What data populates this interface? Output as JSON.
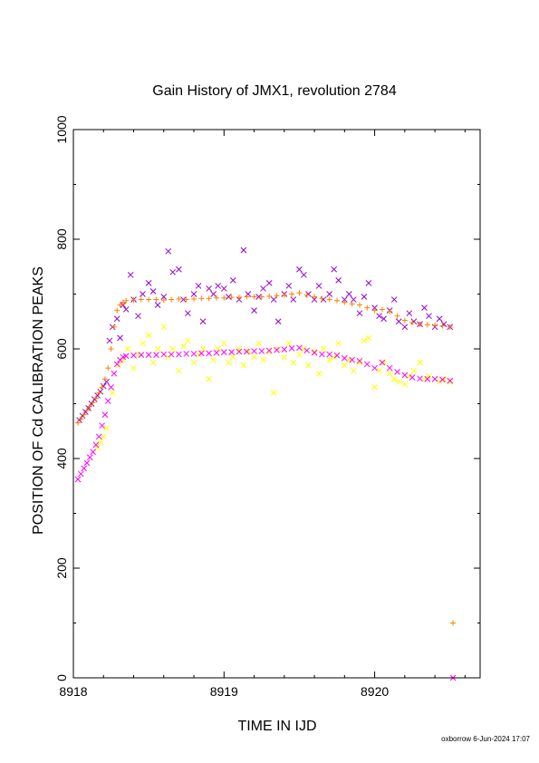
{
  "chart_data": {
    "type": "scatter",
    "title": "Gain History of JMX1, revolution 2784",
    "xlabel": "TIME IN IJD",
    "ylabel": "POSITION OF Cd CALIBRATION PEAKS",
    "xlim": [
      8918.0,
      8920.7
    ],
    "ylim": [
      0,
      1000
    ],
    "xticks": [
      8918,
      8919,
      8920
    ],
    "yticks": [
      0,
      200,
      400,
      600,
      800,
      1000
    ],
    "grid": false,
    "series": [
      {
        "color": "#9400d3",
        "marker": "x",
        "points": [
          [
            8918.04,
            470
          ],
          [
            8918.06,
            478
          ],
          [
            8918.08,
            485
          ],
          [
            8918.1,
            492
          ],
          [
            8918.12,
            500
          ],
          [
            8918.14,
            508
          ],
          [
            8918.16,
            515
          ],
          [
            8918.18,
            522
          ],
          [
            8918.2,
            532
          ],
          [
            8918.22,
            540
          ],
          [
            8918.24,
            615
          ],
          [
            8918.26,
            640
          ],
          [
            8918.29,
            655
          ],
          [
            8918.31,
            620
          ],
          [
            8918.33,
            680
          ],
          [
            8918.35,
            672
          ],
          [
            8918.38,
            735
          ],
          [
            8918.4,
            690
          ],
          [
            8918.43,
            660
          ],
          [
            8918.46,
            700
          ],
          [
            8918.5,
            720
          ],
          [
            8918.53,
            705
          ],
          [
            8918.56,
            680
          ],
          [
            8918.6,
            695
          ],
          [
            8918.63,
            778
          ],
          [
            8918.66,
            740
          ],
          [
            8918.7,
            745
          ],
          [
            8918.73,
            690
          ],
          [
            8918.76,
            665
          ],
          [
            8918.8,
            700
          ],
          [
            8918.83,
            715
          ],
          [
            8918.86,
            650
          ],
          [
            8918.9,
            710
          ],
          [
            8918.93,
            700
          ],
          [
            8918.96,
            715
          ],
          [
            8919.0,
            710
          ],
          [
            8919.03,
            695
          ],
          [
            8919.06,
            725
          ],
          [
            8919.1,
            690
          ],
          [
            8919.13,
            780
          ],
          [
            8919.16,
            700
          ],
          [
            8919.2,
            670
          ],
          [
            8919.23,
            695
          ],
          [
            8919.26,
            710
          ],
          [
            8919.3,
            720
          ],
          [
            8919.33,
            690
          ],
          [
            8919.36,
            650
          ],
          [
            8919.4,
            700
          ],
          [
            8919.43,
            715
          ],
          [
            8919.46,
            690
          ],
          [
            8919.5,
            745
          ],
          [
            8919.53,
            735
          ],
          [
            8919.56,
            700
          ],
          [
            8919.6,
            690
          ],
          [
            8919.63,
            715
          ],
          [
            8919.66,
            690
          ],
          [
            8919.7,
            700
          ],
          [
            8919.73,
            745
          ],
          [
            8919.76,
            725
          ],
          [
            8919.8,
            690
          ],
          [
            8919.83,
            700
          ],
          [
            8919.86,
            690
          ],
          [
            8919.9,
            665
          ],
          [
            8919.93,
            695
          ],
          [
            8919.96,
            720
          ],
          [
            8920.0,
            675
          ],
          [
            8920.03,
            660
          ],
          [
            8920.06,
            655
          ],
          [
            8920.1,
            670
          ],
          [
            8920.13,
            690
          ],
          [
            8920.16,
            650
          ],
          [
            8920.2,
            640
          ],
          [
            8920.23,
            665
          ],
          [
            8920.26,
            650
          ],
          [
            8920.3,
            645
          ],
          [
            8920.33,
            675
          ],
          [
            8920.36,
            660
          ],
          [
            8920.4,
            640
          ],
          [
            8920.43,
            655
          ],
          [
            8920.46,
            645
          ],
          [
            8920.5,
            640
          ]
        ]
      },
      {
        "color": "#ff8000",
        "marker": "+",
        "points": [
          [
            8918.03,
            465
          ],
          [
            8918.05,
            472
          ],
          [
            8918.07,
            480
          ],
          [
            8918.09,
            488
          ],
          [
            8918.11,
            495
          ],
          [
            8918.13,
            502
          ],
          [
            8918.15,
            510
          ],
          [
            8918.17,
            520
          ],
          [
            8918.19,
            530
          ],
          [
            8918.21,
            545
          ],
          [
            8918.23,
            565
          ],
          [
            8918.25,
            600
          ],
          [
            8918.27,
            640
          ],
          [
            8918.29,
            670
          ],
          [
            8918.31,
            680
          ],
          [
            8918.33,
            685
          ],
          [
            8918.35,
            688
          ],
          [
            8918.4,
            689
          ],
          [
            8918.45,
            690
          ],
          [
            8918.5,
            690
          ],
          [
            8918.55,
            690
          ],
          [
            8918.6,
            689
          ],
          [
            8918.65,
            690
          ],
          [
            8918.7,
            691
          ],
          [
            8918.75,
            690
          ],
          [
            8918.8,
            691
          ],
          [
            8918.85,
            692
          ],
          [
            8918.9,
            692
          ],
          [
            8918.95,
            693
          ],
          [
            8919.0,
            693
          ],
          [
            8919.05,
            694
          ],
          [
            8919.1,
            694
          ],
          [
            8919.15,
            695
          ],
          [
            8919.2,
            695
          ],
          [
            8919.25,
            695
          ],
          [
            8919.3,
            696
          ],
          [
            8919.35,
            697
          ],
          [
            8919.4,
            698
          ],
          [
            8919.45,
            700
          ],
          [
            8919.5,
            702
          ],
          [
            8919.55,
            698
          ],
          [
            8919.6,
            695
          ],
          [
            8919.65,
            692
          ],
          [
            8919.7,
            690
          ],
          [
            8919.75,
            688
          ],
          [
            8919.8,
            685
          ],
          [
            8919.85,
            682
          ],
          [
            8919.9,
            680
          ],
          [
            8919.95,
            675
          ],
          [
            8920.0,
            670
          ],
          [
            8920.05,
            672
          ],
          [
            8920.1,
            668
          ],
          [
            8920.15,
            660
          ],
          [
            8920.2,
            652
          ],
          [
            8920.25,
            648
          ],
          [
            8920.3,
            645
          ],
          [
            8920.35,
            644
          ],
          [
            8920.4,
            643
          ],
          [
            8920.45,
            642
          ],
          [
            8920.5,
            640
          ],
          [
            8920.52,
            100
          ]
        ]
      },
      {
        "color": "#ffff00",
        "marker": "x",
        "points": [
          [
            8918.16,
            420
          ],
          [
            8918.18,
            430
          ],
          [
            8918.2,
            440
          ],
          [
            8918.22,
            455
          ],
          [
            8918.26,
            520
          ],
          [
            8918.3,
            570
          ],
          [
            8918.33,
            580
          ],
          [
            8918.36,
            600
          ],
          [
            8918.4,
            565
          ],
          [
            8918.43,
            590
          ],
          [
            8918.46,
            610
          ],
          [
            8918.5,
            625
          ],
          [
            8918.53,
            575
          ],
          [
            8918.56,
            600
          ],
          [
            8918.6,
            640
          ],
          [
            8918.63,
            585
          ],
          [
            8918.66,
            600
          ],
          [
            8918.7,
            560
          ],
          [
            8918.73,
            605
          ],
          [
            8918.76,
            615
          ],
          [
            8918.8,
            575
          ],
          [
            8918.83,
            590
          ],
          [
            8918.86,
            600
          ],
          [
            8918.9,
            545
          ],
          [
            8918.93,
            580
          ],
          [
            8918.96,
            600
          ],
          [
            8919.0,
            610
          ],
          [
            8919.03,
            575
          ],
          [
            8919.06,
            585
          ],
          [
            8919.1,
            600
          ],
          [
            8919.13,
            570
          ],
          [
            8919.16,
            595
          ],
          [
            8919.2,
            585
          ],
          [
            8919.23,
            610
          ],
          [
            8919.26,
            580
          ],
          [
            8919.3,
            595
          ],
          [
            8919.33,
            520
          ],
          [
            8919.36,
            600
          ],
          [
            8919.4,
            585
          ],
          [
            8919.43,
            610
          ],
          [
            8919.46,
            575
          ],
          [
            8919.5,
            590
          ],
          [
            8919.53,
            600
          ],
          [
            8919.56,
            570
          ],
          [
            8919.6,
            595
          ],
          [
            8919.63,
            555
          ],
          [
            8919.66,
            600
          ],
          [
            8919.7,
            580
          ],
          [
            8919.73,
            585
          ],
          [
            8919.76,
            610
          ],
          [
            8919.8,
            570
          ],
          [
            8919.83,
            580
          ],
          [
            8919.86,
            560
          ],
          [
            8919.9,
            575
          ],
          [
            8919.93,
            615
          ],
          [
            8919.96,
            620
          ],
          [
            8920.0,
            530
          ],
          [
            8920.03,
            560
          ],
          [
            8920.06,
            575
          ],
          [
            8920.1,
            555
          ],
          [
            8920.13,
            545
          ],
          [
            8920.16,
            540
          ],
          [
            8920.2,
            535
          ],
          [
            8920.23,
            550
          ],
          [
            8920.26,
            560
          ],
          [
            8920.3,
            575
          ],
          [
            8920.33,
            545
          ],
          [
            8920.36,
            550
          ],
          [
            8920.4,
            545
          ],
          [
            8920.43,
            540
          ],
          [
            8920.46,
            545
          ],
          [
            8920.5,
            540
          ]
        ]
      },
      {
        "color": "#ff00ff",
        "marker": "x",
        "points": [
          [
            8918.03,
            362
          ],
          [
            8918.05,
            372
          ],
          [
            8918.07,
            382
          ],
          [
            8918.09,
            392
          ],
          [
            8918.11,
            402
          ],
          [
            8918.13,
            412
          ],
          [
            8918.15,
            425
          ],
          [
            8918.17,
            440
          ],
          [
            8918.19,
            460
          ],
          [
            8918.21,
            480
          ],
          [
            8918.23,
            505
          ],
          [
            8918.25,
            530
          ],
          [
            8918.27,
            555
          ],
          [
            8918.29,
            572
          ],
          [
            8918.31,
            580
          ],
          [
            8918.33,
            585
          ],
          [
            8918.35,
            587
          ],
          [
            8918.4,
            588
          ],
          [
            8918.45,
            589
          ],
          [
            8918.5,
            589
          ],
          [
            8918.55,
            589
          ],
          [
            8918.6,
            590
          ],
          [
            8918.65,
            590
          ],
          [
            8918.7,
            590
          ],
          [
            8918.75,
            591
          ],
          [
            8918.8,
            591
          ],
          [
            8918.85,
            592
          ],
          [
            8918.9,
            592
          ],
          [
            8918.95,
            593
          ],
          [
            8919.0,
            594
          ],
          [
            8919.05,
            594
          ],
          [
            8919.1,
            595
          ],
          [
            8919.15,
            595
          ],
          [
            8919.2,
            596
          ],
          [
            8919.25,
            596
          ],
          [
            8919.3,
            597
          ],
          [
            8919.35,
            598
          ],
          [
            8919.4,
            599
          ],
          [
            8919.45,
            601
          ],
          [
            8919.5,
            602
          ],
          [
            8919.55,
            597
          ],
          [
            8919.6,
            593
          ],
          [
            8919.65,
            590
          ],
          [
            8919.7,
            590
          ],
          [
            8919.75,
            588
          ],
          [
            8919.8,
            583
          ],
          [
            8919.85,
            580
          ],
          [
            8919.9,
            578
          ],
          [
            8919.95,
            572
          ],
          [
            8920.0,
            565
          ],
          [
            8920.05,
            575
          ],
          [
            8920.1,
            565
          ],
          [
            8920.15,
            558
          ],
          [
            8920.2,
            552
          ],
          [
            8920.25,
            548
          ],
          [
            8920.3,
            546
          ],
          [
            8920.35,
            545
          ],
          [
            8920.4,
            545
          ],
          [
            8920.45,
            544
          ],
          [
            8920.5,
            542
          ],
          [
            8920.52,
            0
          ]
        ]
      }
    ]
  },
  "footer": {
    "credit": "oxborrow 6-Jun-2024 17:07"
  }
}
